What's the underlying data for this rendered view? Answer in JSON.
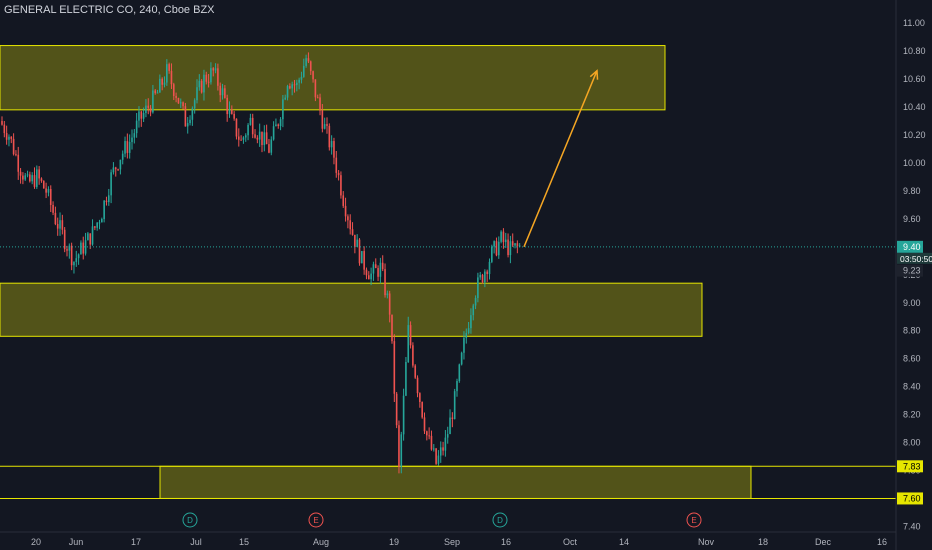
{
  "header": {
    "title": "GENERAL ELECTRIC CO, 240, Cboe BZX"
  },
  "colors": {
    "background": "#131722",
    "up": "#26a69a",
    "down": "#ef5350",
    "zone_fill": "#5a5a18",
    "zone_stroke": "#e6e600",
    "arrow": "#f5a623",
    "price_line": "#26a69a",
    "axis_text": "#b2b5be"
  },
  "chart_data": {
    "type": "candlestick",
    "title": "GENERAL ELECTRIC CO, 240, Cboe BZX",
    "ylim": [
      7.36,
      11.08
    ],
    "y_ticks": [
      "11.00",
      "10.80",
      "10.60",
      "10.40",
      "10.20",
      "10.00",
      "9.80",
      "9.60",
      "9.40",
      "9.20",
      "9.00",
      "8.80",
      "8.60",
      "8.40",
      "8.20",
      "8.00",
      "7.80",
      "7.60",
      "7.40"
    ],
    "x_ticks": [
      "20",
      "Jun",
      "17",
      "Jul",
      "15",
      "Aug",
      "19",
      "Sep",
      "16",
      "Oct",
      "14",
      "Nov",
      "18",
      "Dec",
      "16"
    ],
    "last_price": {
      "value": "9.40",
      "countdown": "03:50:50"
    },
    "price_labels": [
      "9.23",
      "7.83",
      "7.60"
    ],
    "grid": false,
    "legend": "none",
    "zones": [
      {
        "low": 10.38,
        "high": 10.84
      },
      {
        "low": 8.76,
        "high": 9.14
      },
      {
        "low": 7.6,
        "high": 7.83
      }
    ],
    "arrow": {
      "from": 9.4,
      "to": 10.66
    },
    "events": [
      {
        "label": "D",
        "kind": "dividend"
      },
      {
        "label": "E",
        "kind": "earnings"
      },
      {
        "label": "D",
        "kind": "dividend"
      },
      {
        "label": "E",
        "kind": "earnings"
      }
    ],
    "close_path": [
      10.3,
      10.2,
      10.0,
      9.85,
      9.9,
      9.8,
      9.6,
      9.45,
      9.3,
      9.4,
      9.5,
      9.65,
      9.9,
      10.05,
      10.15,
      10.3,
      10.4,
      10.5,
      10.65,
      10.5,
      10.3,
      10.45,
      10.6,
      10.65,
      10.5,
      10.3,
      10.15,
      10.3,
      10.2,
      10.1,
      10.3,
      10.6,
      10.55,
      10.75,
      10.5,
      10.25,
      10.05,
      9.75,
      9.5,
      9.3,
      9.2,
      9.25,
      8.95,
      7.8,
      8.8,
      8.4,
      8.05,
      7.85,
      8.0,
      8.3,
      8.7,
      9.05,
      9.2,
      9.35,
      9.45,
      9.38,
      9.4
    ]
  }
}
